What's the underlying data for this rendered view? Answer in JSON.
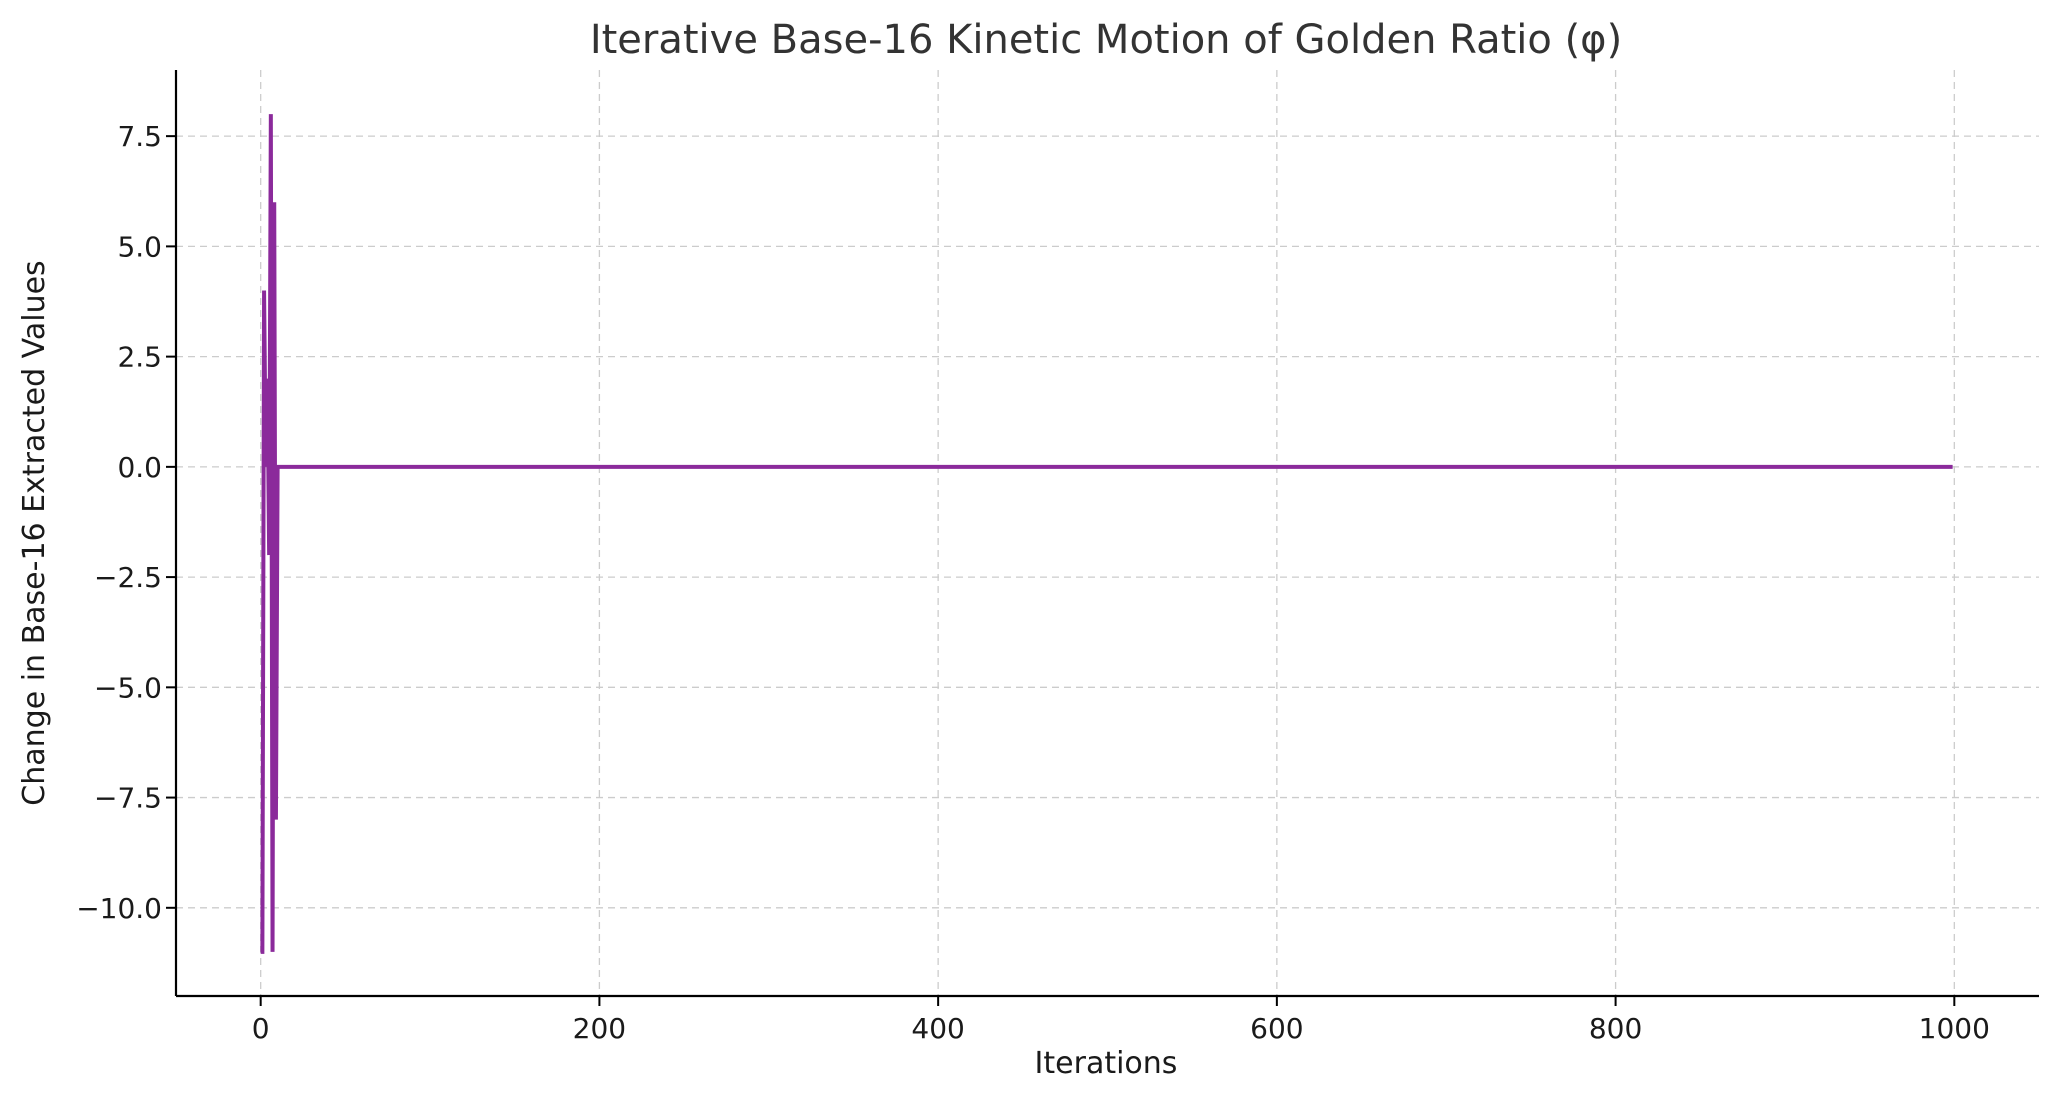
{
  "chart_data": {
    "type": "line",
    "title": "Iterative Base-16 Kinetic Motion of Golden Ratio (φ)",
    "xlabel": "Iterations",
    "ylabel": "Change in Base-16 Extracted Values",
    "xlim": [
      -50,
      1050
    ],
    "ylim": [
      -12,
      9
    ],
    "xticks": [
      0,
      200,
      400,
      600,
      800,
      1000
    ],
    "xtick_labels": [
      "0",
      "200",
      "400",
      "600",
      "800",
      "1000"
    ],
    "yticks": [
      -10,
      -7.5,
      -5,
      -2.5,
      0,
      2.5,
      5,
      7.5
    ],
    "ytick_labels": [
      "−10.0",
      "−7.5",
      "−5.0",
      "−2.5",
      "0.0",
      "2.5",
      "5.0",
      "7.5"
    ],
    "grid": true,
    "color": "#8b2a9b",
    "series": [
      {
        "x": [
          0,
          1,
          2,
          3,
          4,
          5,
          6,
          7,
          8,
          9,
          10,
          11,
          12,
          13,
          999
        ],
        "y": [
          -11,
          -11,
          4,
          0,
          2,
          -2,
          8,
          -11,
          6,
          -8,
          0,
          0,
          0,
          0,
          0
        ]
      }
    ]
  }
}
